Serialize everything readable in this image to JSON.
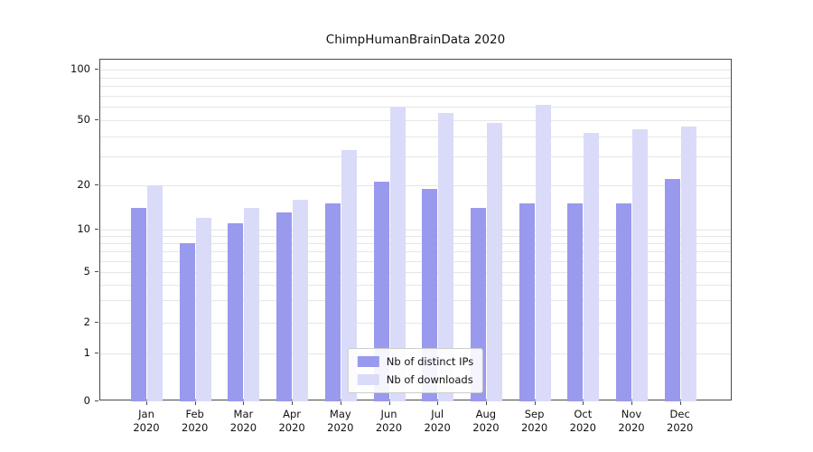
{
  "chart_data": {
    "type": "bar",
    "title": "ChimpHumanBrainData 2020",
    "xlabel": "",
    "ylabel": "",
    "yscale": "symlog",
    "ylim": [
      0,
      100
    ],
    "yticks": [
      0,
      1,
      2,
      5,
      10,
      20,
      50,
      100
    ],
    "grid": true,
    "legend_position": "lower center",
    "categories": [
      {
        "month": "Jan",
        "year": "2020"
      },
      {
        "month": "Feb",
        "year": "2020"
      },
      {
        "month": "Mar",
        "year": "2020"
      },
      {
        "month": "Apr",
        "year": "2020"
      },
      {
        "month": "May",
        "year": "2020"
      },
      {
        "month": "Jun",
        "year": "2020"
      },
      {
        "month": "Jul",
        "year": "2020"
      },
      {
        "month": "Aug",
        "year": "2020"
      },
      {
        "month": "Sep",
        "year": "2020"
      },
      {
        "month": "Oct",
        "year": "2020"
      },
      {
        "month": "Nov",
        "year": "2020"
      },
      {
        "month": "Dec",
        "year": "2020"
      }
    ],
    "series": [
      {
        "name": "Nb of distinct IPs",
        "color": "#9999ee",
        "values": [
          14,
          8,
          11,
          13,
          15,
          21,
          19,
          14,
          15,
          15,
          15,
          22
        ]
      },
      {
        "name": "Nb of downloads",
        "color": "#dadaf9",
        "values": [
          20,
          12,
          14,
          16,
          33,
          60,
          55,
          48,
          62,
          42,
          44,
          46
        ]
      }
    ]
  }
}
